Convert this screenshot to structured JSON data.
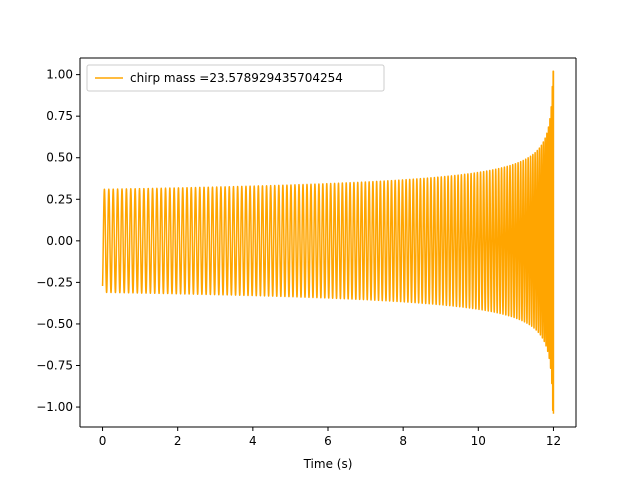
{
  "chart_data": {
    "type": "line",
    "title": "",
    "xlabel": "Time (s)",
    "ylabel": "",
    "xlim": [
      -0.6,
      12.6
    ],
    "ylim": [
      -1.12,
      1.1
    ],
    "x_ticks": [
      0,
      2,
      4,
      6,
      8,
      10,
      12
    ],
    "x_tick_labels": [
      "0",
      "2",
      "4",
      "6",
      "8",
      "10",
      "12"
    ],
    "y_ticks": [
      -1.0,
      -0.75,
      -0.5,
      -0.25,
      0.0,
      0.25,
      0.5,
      0.75,
      1.0
    ],
    "y_tick_labels": [
      "−1.00",
      "−0.75",
      "−0.50",
      "−0.25",
      "0.00",
      "0.25",
      "0.50",
      "0.75",
      "1.00"
    ],
    "grid": false,
    "legend_position": "top-left",
    "series": [
      {
        "name": "chirp mass =23.578929435704254",
        "color": "#ffa500",
        "t_start": 0,
        "t_merge": 12,
        "amplitude_start": 0.31,
        "amplitude_end": 1.02,
        "frequency_start_hz": 8.5,
        "frequency_end_hz": 45
      }
    ]
  }
}
